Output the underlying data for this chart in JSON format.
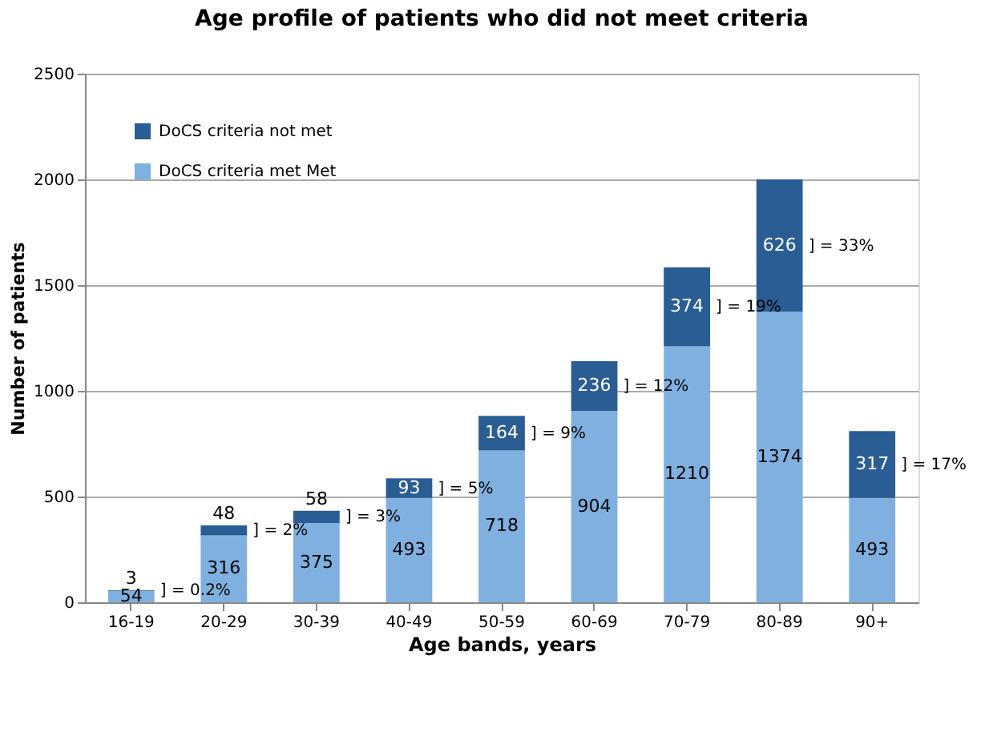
{
  "chart_data": {
    "type": "bar",
    "stacked": true,
    "title": "Age profile of patients who did not meet criteria",
    "xlabel": "Age bands, years",
    "ylabel": "Number of patients",
    "categories": [
      "16-19",
      "20-29",
      "30-39",
      "40-49",
      "50-59",
      "60-69",
      "70-79",
      "80-89",
      "90+"
    ],
    "series": [
      {
        "name": "DoCS criteria met Met",
        "color": "#7fb0e0",
        "values": [
          54,
          316,
          375,
          493,
          718,
          904,
          1210,
          1374,
          493
        ]
      },
      {
        "name": "DoCS criteria not met",
        "color": "#2a5d94",
        "values": [
          3,
          48,
          58,
          93,
          164,
          236,
          374,
          626,
          317
        ]
      }
    ],
    "ylim": [
      0,
      2500
    ],
    "yticks": [
      0,
      500,
      1000,
      1500,
      2000,
      2500
    ],
    "grid": "y",
    "legend": "top left",
    "data_labels": true,
    "annotations": [
      "] = 0.2%",
      "] = 2%",
      "] = 3%",
      "] = 5%",
      "] = 9%",
      "] = 12%",
      "] = 19%",
      "] = 33%",
      "] = 17%"
    ]
  }
}
